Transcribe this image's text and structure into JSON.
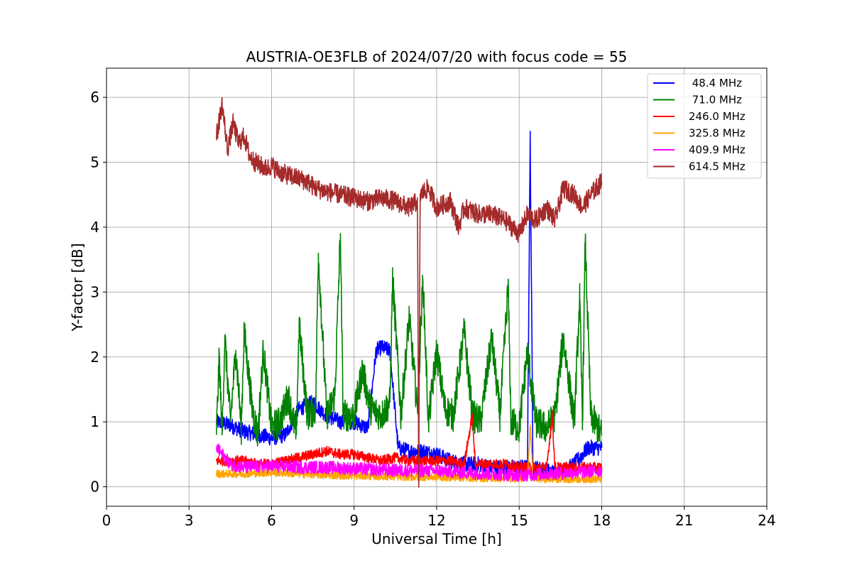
{
  "chart_data": {
    "type": "line",
    "title": "AUSTRIA-OE3FLB of 2024/07/20 with focus code = 55",
    "xlabel": "Universal Time [h]",
    "ylabel": "Y-factor [dB]",
    "xlim": [
      0,
      24
    ],
    "ylim": [
      -0.3,
      6.45
    ],
    "xticks": [
      0,
      3,
      6,
      9,
      12,
      15,
      18,
      21,
      24
    ],
    "yticks": [
      0,
      1,
      2,
      3,
      4,
      5,
      6
    ],
    "grid": true,
    "legend_position": "top-right",
    "series": [
      {
        "name": " 48.4 MHz",
        "color": "#0000ff",
        "x": [
          4.0,
          4.5,
          5.0,
          5.5,
          6.0,
          6.5,
          7.0,
          7.5,
          8.0,
          8.5,
          9.0,
          9.5,
          9.8,
          10.0,
          10.3,
          10.6,
          11.0,
          11.5,
          12.0,
          12.5,
          13.0,
          13.5,
          14.0,
          14.5,
          15.0,
          15.3,
          15.4,
          15.5,
          16.0,
          16.5,
          17.0,
          17.5,
          18.0
        ],
        "y": [
          1.0,
          0.95,
          0.85,
          0.8,
          0.75,
          0.8,
          1.2,
          1.3,
          1.1,
          1.0,
          1.0,
          0.9,
          2.1,
          2.15,
          2.1,
          0.6,
          0.55,
          0.55,
          0.5,
          0.4,
          0.35,
          0.35,
          0.3,
          0.3,
          0.3,
          0.3,
          5.4,
          0.3,
          0.25,
          0.2,
          0.35,
          0.6,
          0.6
        ]
      },
      {
        "name": " 71.0 MHz",
        "color": "#008000",
        "x": [
          4.0,
          4.1,
          4.2,
          4.3,
          4.5,
          4.7,
          4.9,
          5.0,
          5.3,
          5.5,
          5.7,
          6.0,
          6.3,
          6.6,
          6.9,
          7.0,
          7.3,
          7.6,
          7.7,
          8.0,
          8.3,
          8.5,
          8.6,
          9.0,
          9.3,
          9.6,
          10.0,
          10.3,
          10.4,
          10.7,
          11.0,
          11.3,
          11.5,
          11.7,
          12.0,
          12.3,
          12.6,
          13.0,
          13.3,
          13.6,
          14.0,
          14.3,
          14.6,
          14.7,
          15.0,
          15.3,
          15.6,
          16.0,
          16.3,
          16.6,
          17.0,
          17.2,
          17.3,
          17.4,
          17.6,
          18.0
        ],
        "y": [
          0.9,
          2.0,
          0.8,
          2.3,
          1.0,
          2.1,
          0.9,
          2.4,
          1.2,
          0.8,
          2.1,
          0.9,
          1.0,
          1.4,
          0.8,
          2.5,
          1.1,
          1.2,
          3.6,
          1.1,
          1.4,
          3.9,
          1.1,
          1.1,
          1.8,
          1.2,
          1.1,
          1.3,
          3.2,
          1.1,
          2.6,
          1.2,
          3.2,
          1.0,
          2.1,
          1.2,
          1.1,
          2.4,
          1.1,
          1.0,
          2.3,
          1.1,
          3.1,
          1.0,
          0.9,
          2.1,
          1.0,
          0.9,
          1.1,
          2.3,
          1.0,
          2.9,
          1.0,
          3.8,
          1.1,
          0.8
        ]
      },
      {
        "name": "246.0 MHz",
        "color": "#ff0000",
        "x": [
          4.0,
          4.5,
          5.0,
          5.5,
          6.0,
          6.5,
          7.0,
          7.5,
          8.0,
          8.5,
          9.0,
          9.5,
          10.0,
          10.5,
          11.0,
          11.5,
          12.0,
          12.5,
          13.0,
          13.3,
          13.4,
          13.5,
          14.0,
          14.5,
          15.0,
          15.5,
          16.0,
          16.2,
          16.3,
          16.5,
          17.0,
          17.5,
          18.0
        ],
        "y": [
          0.4,
          0.4,
          0.4,
          0.35,
          0.35,
          0.4,
          0.45,
          0.5,
          0.55,
          0.5,
          0.5,
          0.45,
          0.4,
          0.45,
          0.4,
          0.4,
          0.4,
          0.4,
          0.35,
          1.1,
          0.35,
          0.35,
          0.35,
          0.35,
          0.3,
          0.3,
          0.3,
          1.1,
          0.3,
          0.3,
          0.3,
          0.3,
          0.3
        ]
      },
      {
        "name": "325.8 MHz",
        "color": "#ffa500",
        "x": [
          4.0,
          5.0,
          6.0,
          7.0,
          8.0,
          9.0,
          10.0,
          11.0,
          12.0,
          13.0,
          14.0,
          15.0,
          15.3,
          15.4,
          15.5,
          16.0,
          17.0,
          18.0
        ],
        "y": [
          0.2,
          0.2,
          0.22,
          0.2,
          0.18,
          0.17,
          0.16,
          0.15,
          0.15,
          0.14,
          0.13,
          0.13,
          0.13,
          0.95,
          0.13,
          0.12,
          0.12,
          0.12
        ]
      },
      {
        "name": "409.9 MHz",
        "color": "#ff00ff",
        "x": [
          4.0,
          4.5,
          5.0,
          6.0,
          7.0,
          8.0,
          9.0,
          10.0,
          11.0,
          12.0,
          13.0,
          14.0,
          15.0,
          16.0,
          17.0,
          18.0
        ],
        "y": [
          0.6,
          0.35,
          0.3,
          0.32,
          0.3,
          0.3,
          0.28,
          0.26,
          0.25,
          0.25,
          0.22,
          0.2,
          0.18,
          0.2,
          0.22,
          0.25
        ]
      },
      {
        "name": "614.5 MHz",
        "color": "#a52a2a",
        "x": [
          4.0,
          4.2,
          4.4,
          4.6,
          4.8,
          5.0,
          5.2,
          5.4,
          5.6,
          5.8,
          6.0,
          6.3,
          6.6,
          7.0,
          7.3,
          7.6,
          8.0,
          8.5,
          9.0,
          9.5,
          10.0,
          10.5,
          11.0,
          11.3,
          11.35,
          11.4,
          11.7,
          12.0,
          12.5,
          12.8,
          13.0,
          13.5,
          14.0,
          14.5,
          15.0,
          15.3,
          15.6,
          16.0,
          16.3,
          16.6,
          17.0,
          17.3,
          17.6,
          18.0
        ],
        "y": [
          5.4,
          5.9,
          5.2,
          5.6,
          5.3,
          5.4,
          5.1,
          5.0,
          4.95,
          4.9,
          4.95,
          4.85,
          4.8,
          4.75,
          4.7,
          4.6,
          4.55,
          4.5,
          4.45,
          4.4,
          4.45,
          4.4,
          4.3,
          4.4,
          0.0,
          4.5,
          4.6,
          4.3,
          4.4,
          4.0,
          4.3,
          4.2,
          4.2,
          4.1,
          3.9,
          4.2,
          4.1,
          4.3,
          4.1,
          4.6,
          4.5,
          4.3,
          4.5,
          4.7
        ]
      }
    ]
  }
}
